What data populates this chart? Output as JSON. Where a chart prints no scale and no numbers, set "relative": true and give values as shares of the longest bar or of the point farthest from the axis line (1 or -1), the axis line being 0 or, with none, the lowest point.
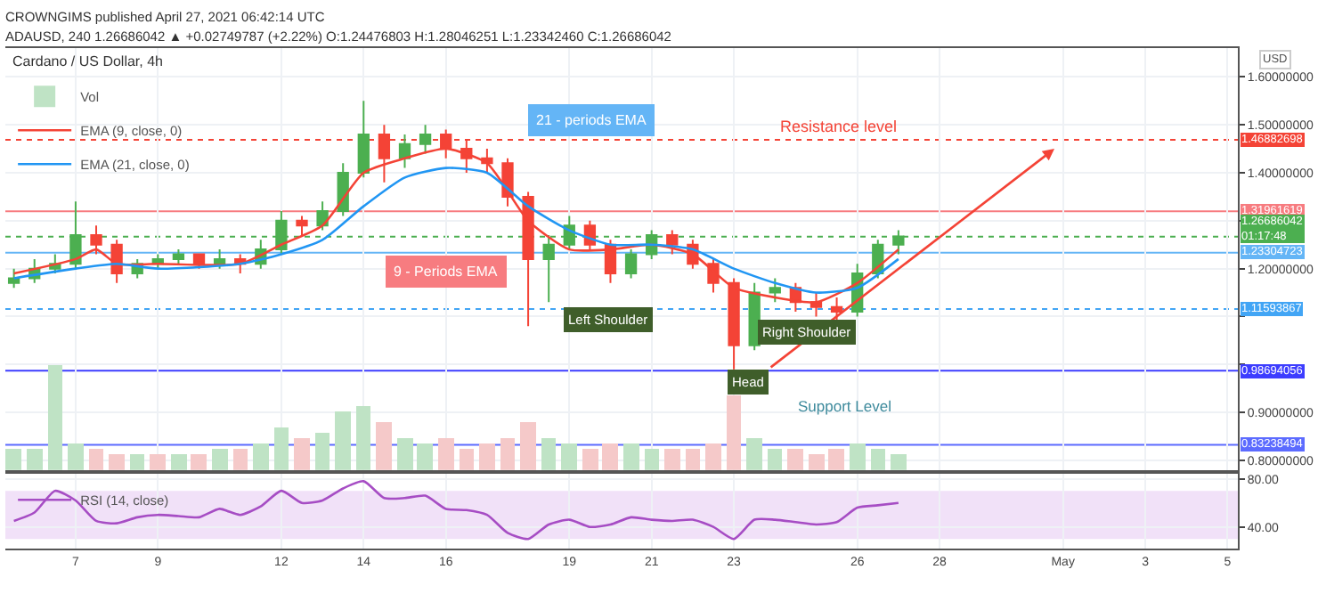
{
  "chart_data": [
    {
      "type": "candlestick",
      "title": "Cardano / US Dollar, 4h",
      "ylabel": "USD",
      "annotations": [
        "CROWNGIMS published April 27, 2021 06:42:14 UTC",
        "ADAUSD, 240 1.26686042 ▲ +0.02749787 (+2.22%) O:1.24476803 H:1.28046251 L:1.23342460 C:1.26686042",
        "Resistance level",
        "21 - periods EMA",
        "9 - Periods EMA",
        "Left Shoulder",
        "Head",
        "Right Shoulder",
        "Support Level"
      ],
      "x": [
        "2021-04-05T12:00",
        "2021-04-06T00:00",
        "2021-04-06T12:00",
        "2021-04-07T00:00",
        "2021-04-07T12:00",
        "2021-04-08T00:00",
        "2021-04-08T12:00",
        "2021-04-09T00:00",
        "2021-04-09T12:00",
        "2021-04-10T00:00",
        "2021-04-10T12:00",
        "2021-04-11T00:00",
        "2021-04-11T12:00",
        "2021-04-12T00:00",
        "2021-04-12T12:00",
        "2021-04-13T00:00",
        "2021-04-13T12:00",
        "2021-04-14T00:00",
        "2021-04-14T12:00",
        "2021-04-15T00:00",
        "2021-04-15T12:00",
        "2021-04-16T00:00",
        "2021-04-16T12:00",
        "2021-04-17T00:00",
        "2021-04-17T12:00",
        "2021-04-18T00:00",
        "2021-04-18T12:00",
        "2021-04-19T00:00",
        "2021-04-19T12:00",
        "2021-04-20T00:00",
        "2021-04-20T12:00",
        "2021-04-21T00:00",
        "2021-04-21T12:00",
        "2021-04-22T00:00",
        "2021-04-22T12:00",
        "2021-04-23T00:00",
        "2021-04-23T12:00",
        "2021-04-24T00:00",
        "2021-04-24T12:00",
        "2021-04-25T00:00",
        "2021-04-25T12:00",
        "2021-04-26T00:00",
        "2021-04-26T12:00",
        "2021-04-27T00:00"
      ],
      "ohlc": [
        [
          1.17,
          1.2,
          1.16,
          1.18
        ],
        [
          1.18,
          1.22,
          1.17,
          1.2
        ],
        [
          1.2,
          1.23,
          1.19,
          1.21
        ],
        [
          1.21,
          1.34,
          1.2,
          1.27
        ],
        [
          1.27,
          1.29,
          1.23,
          1.25
        ],
        [
          1.25,
          1.26,
          1.17,
          1.19
        ],
        [
          1.19,
          1.22,
          1.18,
          1.21
        ],
        [
          1.21,
          1.23,
          1.2,
          1.22
        ],
        [
          1.22,
          1.24,
          1.21,
          1.23
        ],
        [
          1.23,
          1.23,
          1.2,
          1.21
        ],
        [
          1.21,
          1.24,
          1.2,
          1.22
        ],
        [
          1.22,
          1.23,
          1.19,
          1.21
        ],
        [
          1.21,
          1.26,
          1.2,
          1.24
        ],
        [
          1.24,
          1.32,
          1.23,
          1.3
        ],
        [
          1.3,
          1.31,
          1.27,
          1.29
        ],
        [
          1.29,
          1.34,
          1.28,
          1.32
        ],
        [
          1.32,
          1.42,
          1.31,
          1.4
        ],
        [
          1.4,
          1.55,
          1.39,
          1.48
        ],
        [
          1.48,
          1.5,
          1.38,
          1.43
        ],
        [
          1.43,
          1.48,
          1.41,
          1.46
        ],
        [
          1.46,
          1.5,
          1.44,
          1.48
        ],
        [
          1.48,
          1.49,
          1.43,
          1.45
        ],
        [
          1.45,
          1.47,
          1.4,
          1.43
        ],
        [
          1.43,
          1.45,
          1.4,
          1.42
        ],
        [
          1.42,
          1.43,
          1.33,
          1.35
        ],
        [
          1.35,
          1.36,
          1.08,
          1.22
        ],
        [
          1.22,
          1.27,
          1.13,
          1.25
        ],
        [
          1.25,
          1.31,
          1.24,
          1.29
        ],
        [
          1.29,
          1.3,
          1.24,
          1.25
        ],
        [
          1.25,
          1.26,
          1.17,
          1.19
        ],
        [
          1.19,
          1.24,
          1.18,
          1.23
        ],
        [
          1.23,
          1.28,
          1.22,
          1.27
        ],
        [
          1.27,
          1.28,
          1.23,
          1.25
        ],
        [
          1.25,
          1.26,
          1.2,
          1.21
        ],
        [
          1.21,
          1.22,
          1.15,
          1.17
        ],
        [
          1.17,
          1.18,
          0.99,
          1.04
        ],
        [
          1.04,
          1.17,
          1.03,
          1.15
        ],
        [
          1.15,
          1.18,
          1.13,
          1.16
        ],
        [
          1.16,
          1.17,
          1.11,
          1.13
        ],
        [
          1.13,
          1.15,
          1.1,
          1.12
        ],
        [
          1.12,
          1.14,
          1.09,
          1.11
        ],
        [
          1.11,
          1.21,
          1.1,
          1.19
        ],
        [
          1.19,
          1.26,
          1.18,
          1.25
        ],
        [
          1.25,
          1.28,
          1.23,
          1.267
        ]
      ],
      "series": [
        {
          "name": "EMA (9, close, 0)",
          "type": "line",
          "color": "#f44336",
          "x": [
            "2021-04-05T12:00",
            "2021-04-07T00:00",
            "2021-04-07T12:00",
            "2021-04-08T00:00",
            "2021-04-09T00:00",
            "2021-04-11T00:00",
            "2021-04-12T00:00",
            "2021-04-13T00:00",
            "2021-04-14T00:00",
            "2021-04-15T00:00",
            "2021-04-16T00:00",
            "2021-04-17T00:00",
            "2021-04-18T00:00",
            "2021-04-19T00:00",
            "2021-04-20T00:00",
            "2021-04-21T00:00",
            "2021-04-22T00:00",
            "2021-04-23T00:00",
            "2021-04-24T00:00",
            "2021-04-25T00:00",
            "2021-04-26T00:00",
            "2021-04-27T00:00"
          ],
          "values": [
            1.19,
            1.22,
            1.24,
            1.21,
            1.21,
            1.21,
            1.25,
            1.29,
            1.4,
            1.43,
            1.45,
            1.42,
            1.3,
            1.24,
            1.24,
            1.25,
            1.23,
            1.16,
            1.14,
            1.13,
            1.17,
            1.24
          ]
        },
        {
          "name": "EMA (21, close, 0)",
          "type": "line",
          "color": "#2196f3",
          "x": [
            "2021-04-05T12:00",
            "2021-04-07T00:00",
            "2021-04-08T00:00",
            "2021-04-09T00:00",
            "2021-04-11T00:00",
            "2021-04-12T00:00",
            "2021-04-13T00:00",
            "2021-04-14T00:00",
            "2021-04-15T00:00",
            "2021-04-16T00:00",
            "2021-04-17T00:00",
            "2021-04-18T00:00",
            "2021-04-19T00:00",
            "2021-04-20T00:00",
            "2021-04-21T00:00",
            "2021-04-22T00:00",
            "2021-04-23T00:00",
            "2021-04-24T00:00",
            "2021-04-25T00:00",
            "2021-04-26T00:00",
            "2021-04-27T00:00"
          ],
          "values": [
            1.18,
            1.2,
            1.21,
            1.2,
            1.21,
            1.23,
            1.26,
            1.33,
            1.39,
            1.41,
            1.4,
            1.33,
            1.28,
            1.25,
            1.25,
            1.24,
            1.2,
            1.17,
            1.15,
            1.16,
            1.22
          ]
        }
      ],
      "xlim": [
        "2021-04-05T07:00",
        "2021-05-05T06:00"
      ],
      "ylim": [
        0.78,
        1.66
      ],
      "yticks": [
        {
          "value": 0.8,
          "label": "0.80000000"
        },
        {
          "value": 0.9,
          "label": "0.90000000"
        },
        {
          "value": 1.0,
          "label": null
        },
        {
          "value": 1.1,
          "label": null
        },
        {
          "value": 1.2,
          "label": "1.20000000"
        },
        {
          "value": 1.3,
          "label": null
        },
        {
          "value": 1.4,
          "label": "1.40000000"
        },
        {
          "value": 1.5,
          "label": "1.50000000"
        },
        {
          "value": 1.6,
          "label": "1.60000000"
        }
      ],
      "ref_lines": [
        {
          "axis": "y",
          "value": 1.46882698,
          "label": "1.46882698",
          "color": "#f44336",
          "line_style": "dotted"
        },
        {
          "axis": "y",
          "value": 1.31961619,
          "label": "1.31961619",
          "color": "#f77c80",
          "line_style": "solid"
        },
        {
          "axis": "y",
          "value": 1.26686042,
          "label": "1.26686042\n01:17:48",
          "color": "#4caf50",
          "line_style": "dotted"
        },
        {
          "axis": "y",
          "value": 1.23304723,
          "label": "1.23304723",
          "color": "#64b5f6",
          "line_style": "solid"
        },
        {
          "axis": "y",
          "value": 1.11593867,
          "label": "1.11593867",
          "color": "#42a5f5",
          "line_style": "dotted"
        },
        {
          "axis": "y",
          "value": 0.98694056,
          "label": "0.98694056",
          "color": "#3d3dff",
          "line_style": "solid"
        },
        {
          "axis": "y",
          "value": 0.83238494,
          "label": "0.83238494",
          "color": "#5c6bff",
          "line_style": "solid"
        }
      ],
      "grid": true,
      "legend": "top left",
      "tick_labels": "y"
    },
    {
      "type": "bar",
      "relative": true,
      "tick_labels": false,
      "legend": "top left",
      "xlim": [
        "2021-04-05T07:00",
        "2021-05-05T06:00"
      ],
      "x": [
        "2021-04-05T12:00",
        "2021-04-06T00:00",
        "2021-04-06T12:00",
        "2021-04-07T00:00",
        "2021-04-07T12:00",
        "2021-04-08T00:00",
        "2021-04-08T12:00",
        "2021-04-09T00:00",
        "2021-04-09T12:00",
        "2021-04-10T00:00",
        "2021-04-10T12:00",
        "2021-04-11T00:00",
        "2021-04-11T12:00",
        "2021-04-12T00:00",
        "2021-04-12T12:00",
        "2021-04-13T00:00",
        "2021-04-13T12:00",
        "2021-04-14T00:00",
        "2021-04-14T12:00",
        "2021-04-15T00:00",
        "2021-04-15T12:00",
        "2021-04-16T00:00",
        "2021-04-16T12:00",
        "2021-04-17T00:00",
        "2021-04-17T12:00",
        "2021-04-18T00:00",
        "2021-04-18T12:00",
        "2021-04-19T00:00",
        "2021-04-19T12:00",
        "2021-04-20T00:00",
        "2021-04-20T12:00",
        "2021-04-21T00:00",
        "2021-04-21T12:00",
        "2021-04-22T00:00",
        "2021-04-22T12:00",
        "2021-04-23T00:00",
        "2021-04-23T12:00",
        "2021-04-24T00:00",
        "2021-04-24T12:00",
        "2021-04-25T00:00",
        "2021-04-25T12:00",
        "2021-04-26T00:00",
        "2021-04-26T12:00",
        "2021-04-27T00:00"
      ],
      "series": [
        {
          "name": "Vol",
          "values": [
            0.2,
            0.2,
            1.0,
            0.25,
            0.2,
            0.15,
            0.15,
            0.15,
            0.15,
            0.15,
            0.2,
            0.2,
            0.25,
            0.4,
            0.3,
            0.35,
            0.55,
            0.6,
            0.45,
            0.3,
            0.25,
            0.3,
            0.2,
            0.25,
            0.3,
            0.45,
            0.3,
            0.25,
            0.2,
            0.25,
            0.25,
            0.2,
            0.2,
            0.2,
            0.25,
            0.7,
            0.3,
            0.2,
            0.2,
            0.15,
            0.2,
            0.25,
            0.2,
            0.15
          ],
          "colors": [
            "#bfe3c5",
            "#bfe3c5",
            "#bfe3c5",
            "#bfe3c5",
            "#f5c9c9",
            "#f5c9c9",
            "#bfe3c5",
            "#f5c9c9",
            "#bfe3c5",
            "#f5c9c9",
            "#bfe3c5",
            "#f5c9c9",
            "#bfe3c5",
            "#bfe3c5",
            "#f5c9c9",
            "#bfe3c5",
            "#bfe3c5",
            "#bfe3c5",
            "#f5c9c9",
            "#bfe3c5",
            "#bfe3c5",
            "#f5c9c9",
            "#f5c9c9",
            "#f5c9c9",
            "#f5c9c9",
            "#f5c9c9",
            "#bfe3c5",
            "#bfe3c5",
            "#f5c9c9",
            "#f5c9c9",
            "#bfe3c5",
            "#bfe3c5",
            "#f5c9c9",
            "#f5c9c9",
            "#f5c9c9",
            "#f5c9c9",
            "#bfe3c5",
            "#bfe3c5",
            "#f5c9c9",
            "#f5c9c9",
            "#f5c9c9",
            "#bfe3c5",
            "#bfe3c5",
            "#bfe3c5"
          ]
        }
      ]
    },
    {
      "type": "line",
      "legend": "top left",
      "grid": true,
      "x": [
        "2021-04-05T12:00",
        "2021-04-06T00:00",
        "2021-04-06T12:00",
        "2021-04-07T00:00",
        "2021-04-07T12:00",
        "2021-04-08T00:00",
        "2021-04-08T12:00",
        "2021-04-09T00:00",
        "2021-04-09T12:00",
        "2021-04-10T00:00",
        "2021-04-10T12:00",
        "2021-04-11T00:00",
        "2021-04-11T12:00",
        "2021-04-12T00:00",
        "2021-04-12T12:00",
        "2021-04-13T00:00",
        "2021-04-13T12:00",
        "2021-04-14T00:00",
        "2021-04-14T12:00",
        "2021-04-15T00:00",
        "2021-04-15T12:00",
        "2021-04-16T00:00",
        "2021-04-16T12:00",
        "2021-04-17T00:00",
        "2021-04-17T12:00",
        "2021-04-18T00:00",
        "2021-04-18T12:00",
        "2021-04-19T00:00",
        "2021-04-19T12:00",
        "2021-04-20T00:00",
        "2021-04-20T12:00",
        "2021-04-21T00:00",
        "2021-04-21T12:00",
        "2021-04-22T00:00",
        "2021-04-22T12:00",
        "2021-04-23T00:00",
        "2021-04-23T12:00",
        "2021-04-24T00:00",
        "2021-04-24T12:00",
        "2021-04-25T00:00",
        "2021-04-25T12:00",
        "2021-04-26T00:00",
        "2021-04-26T12:00",
        "2021-04-27T00:00"
      ],
      "series": [
        {
          "name": "RSI (14, close)",
          "color": "#a64dc4",
          "values": [
            45,
            52,
            70,
            62,
            45,
            43,
            48,
            50,
            49,
            48,
            55,
            50,
            57,
            70,
            60,
            62,
            72,
            78,
            64,
            64,
            66,
            55,
            54,
            50,
            35,
            30,
            42,
            46,
            40,
            42,
            48,
            46,
            45,
            46,
            40,
            30,
            46,
            46,
            44,
            42,
            44,
            56,
            58,
            60
          ]
        }
      ],
      "xlim": [
        "2021-04-05T07:00",
        "2021-05-05T06:00"
      ],
      "xticks": [
        {
          "value": "2021-04-07",
          "label": "7"
        },
        {
          "value": "2021-04-09",
          "label": "9"
        },
        {
          "value": "2021-04-12",
          "label": "12"
        },
        {
          "value": "2021-04-14",
          "label": "14"
        },
        {
          "value": "2021-04-16",
          "label": "16"
        },
        {
          "value": "2021-04-19",
          "label": "19"
        },
        {
          "value": "2021-04-21",
          "label": "21"
        },
        {
          "value": "2021-04-23",
          "label": "23"
        },
        {
          "value": "2021-04-26",
          "label": "26"
        },
        {
          "value": "2021-04-28",
          "label": "28"
        },
        {
          "value": "2021-05-01",
          "label": "May"
        },
        {
          "value": "2021-05-03",
          "label": "3"
        },
        {
          "value": "2021-05-05",
          "label": "5"
        }
      ],
      "ylim": [
        22,
        84
      ],
      "yticks": [
        {
          "value": 80,
          "label": "80.00"
        },
        {
          "value": 40,
          "label": "40.00"
        }
      ],
      "bands": [
        {
          "axis": "y",
          "from": 30,
          "to": 70,
          "color": "#f1e1f8"
        }
      ]
    }
  ]
}
